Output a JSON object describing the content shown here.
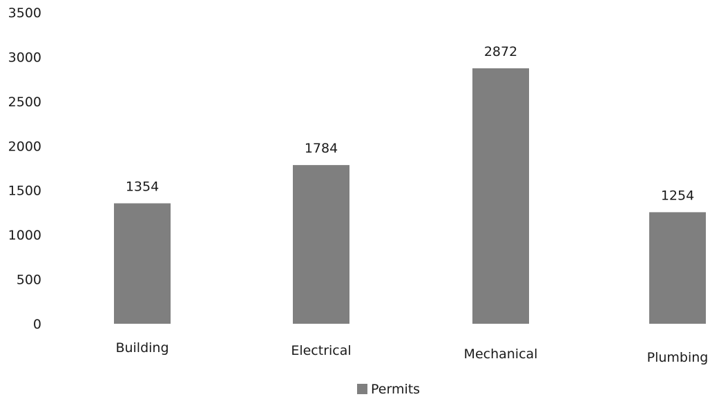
{
  "chart_data": {
    "type": "bar",
    "categories": [
      "Building",
      "Electrical",
      "Mechanical",
      "Plumbing"
    ],
    "series": [
      {
        "name": "Permits",
        "values": [
          1354,
          1784,
          2872,
          1254
        ],
        "color": "#7f7f7f"
      }
    ],
    "data_labels": [
      "1354",
      "1784",
      "2872",
      "1254"
    ],
    "ylim": [
      0,
      3500
    ],
    "yticks": [
      0,
      500,
      1000,
      1500,
      2000,
      2500,
      3000,
      3500
    ],
    "ytick_labels": [
      "0",
      "500",
      "1000",
      "1500",
      "2000",
      "2500",
      "3000",
      "3500"
    ],
    "grid": false,
    "legend": {
      "position": "bottom",
      "entries": [
        "Permits"
      ]
    },
    "title": "",
    "xlabel": "",
    "ylabel": ""
  }
}
